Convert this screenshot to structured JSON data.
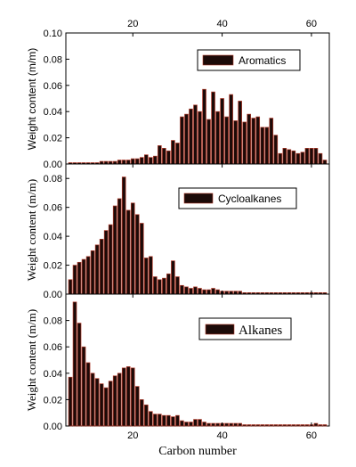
{
  "chart_data": [
    {
      "type": "bar",
      "legend": "Aromatics",
      "ylabel": "Weight content (m/m)",
      "ylim": [
        0,
        0.1
      ],
      "yticks": [
        "0.00",
        "0.02",
        "0.04",
        "0.06",
        "0.08",
        "0.10"
      ],
      "xlim": [
        5,
        64
      ],
      "xticks_top": [
        "20",
        "40",
        "60"
      ],
      "x": [
        6,
        7,
        8,
        9,
        10,
        11,
        12,
        13,
        14,
        15,
        16,
        17,
        18,
        19,
        20,
        21,
        22,
        23,
        24,
        25,
        26,
        27,
        28,
        29,
        30,
        31,
        32,
        33,
        34,
        35,
        36,
        37,
        38,
        39,
        40,
        41,
        42,
        43,
        44,
        45,
        46,
        47,
        48,
        49,
        50,
        51,
        52,
        53,
        54,
        55,
        56,
        57,
        58,
        59,
        60,
        61,
        62,
        63
      ],
      "values": [
        0.001,
        0.001,
        0.001,
        0.001,
        0.001,
        0.001,
        0.001,
        0.002,
        0.002,
        0.002,
        0.002,
        0.003,
        0.003,
        0.003,
        0.004,
        0.004,
        0.005,
        0.007,
        0.005,
        0.006,
        0.014,
        0.012,
        0.01,
        0.018,
        0.016,
        0.036,
        0.038,
        0.042,
        0.045,
        0.04,
        0.057,
        0.034,
        0.055,
        0.04,
        0.05,
        0.036,
        0.053,
        0.033,
        0.048,
        0.032,
        0.038,
        0.035,
        0.036,
        0.028,
        0.028,
        0.035,
        0.022,
        0.008,
        0.012,
        0.011,
        0.01,
        0.008,
        0.009,
        0.012,
        0.012,
        0.012,
        0.008,
        0.003
      ]
    },
    {
      "type": "bar",
      "legend": "Cycloalkanes",
      "ylabel": "Weight content (m/m)",
      "ylim": [
        0,
        0.09
      ],
      "yticks": [
        "0.00",
        "0.02",
        "0.04",
        "0.06",
        "0.08"
      ],
      "xlim": [
        5,
        64
      ],
      "x": [
        6,
        7,
        8,
        9,
        10,
        11,
        12,
        13,
        14,
        15,
        16,
        17,
        18,
        19,
        20,
        21,
        22,
        23,
        24,
        25,
        26,
        27,
        28,
        29,
        30,
        31,
        32,
        33,
        34,
        35,
        36,
        37,
        38,
        39,
        40,
        41,
        42,
        43,
        44,
        45,
        46,
        47,
        48,
        49,
        50,
        51,
        52,
        53,
        54,
        55,
        56,
        57,
        58,
        59,
        60,
        61,
        62,
        63
      ],
      "values": [
        0.01,
        0.02,
        0.022,
        0.024,
        0.026,
        0.03,
        0.034,
        0.038,
        0.044,
        0.048,
        0.061,
        0.066,
        0.081,
        0.058,
        0.063,
        0.055,
        0.049,
        0.025,
        0.026,
        0.012,
        0.01,
        0.011,
        0.014,
        0.023,
        0.012,
        0.006,
        0.005,
        0.004,
        0.005,
        0.004,
        0.003,
        0.003,
        0.004,
        0.003,
        0.002,
        0.002,
        0.002,
        0.002,
        0.002,
        0.001,
        0.001,
        0.001,
        0.001,
        0.001,
        0.001,
        0.001,
        0.001,
        0.001,
        0.001,
        0.001,
        0.001,
        0.001,
        0.001,
        0.001,
        0.001,
        0.001,
        0.001,
        0.001
      ]
    },
    {
      "type": "bar",
      "legend": "Alkanes",
      "ylabel": "Weight content (m/m)",
      "ylim": [
        0,
        0.1
      ],
      "yticks": [
        "0.00",
        "0.02",
        "0.04",
        "0.06",
        "0.08"
      ],
      "xlim": [
        5,
        64
      ],
      "xticks": [
        "20",
        "40",
        "60"
      ],
      "xlabel": "Carbon number",
      "x": [
        6,
        7,
        8,
        9,
        10,
        11,
        12,
        13,
        14,
        15,
        16,
        17,
        18,
        19,
        20,
        21,
        22,
        23,
        24,
        25,
        26,
        27,
        28,
        29,
        30,
        31,
        32,
        33,
        34,
        35,
        36,
        37,
        38,
        39,
        40,
        41,
        42,
        43,
        44,
        45,
        46,
        47,
        48,
        49,
        50,
        51,
        52,
        53,
        54,
        55,
        56,
        57,
        58,
        59,
        60,
        61,
        62,
        63
      ],
      "values": [
        0.037,
        0.094,
        0.078,
        0.06,
        0.048,
        0.04,
        0.036,
        0.032,
        0.029,
        0.034,
        0.038,
        0.04,
        0.044,
        0.045,
        0.044,
        0.03,
        0.02,
        0.016,
        0.011,
        0.009,
        0.009,
        0.008,
        0.008,
        0.007,
        0.008,
        0.004,
        0.003,
        0.003,
        0.005,
        0.005,
        0.003,
        0.002,
        0.002,
        0.002,
        0.002,
        0.002,
        0.002,
        0.002,
        0.002,
        0.001,
        0.001,
        0.001,
        0.001,
        0.001,
        0.001,
        0.001,
        0.001,
        0.001,
        0.001,
        0.001,
        0.001,
        0.001,
        0.001,
        0.001,
        0.001,
        0.002,
        0.001,
        0.001
      ]
    }
  ],
  "colors": {
    "bar_fill": "#1c0a08",
    "bar_edge": "#b03a2a",
    "axis": "#000000",
    "legend_swatch": "#1c0a08"
  }
}
